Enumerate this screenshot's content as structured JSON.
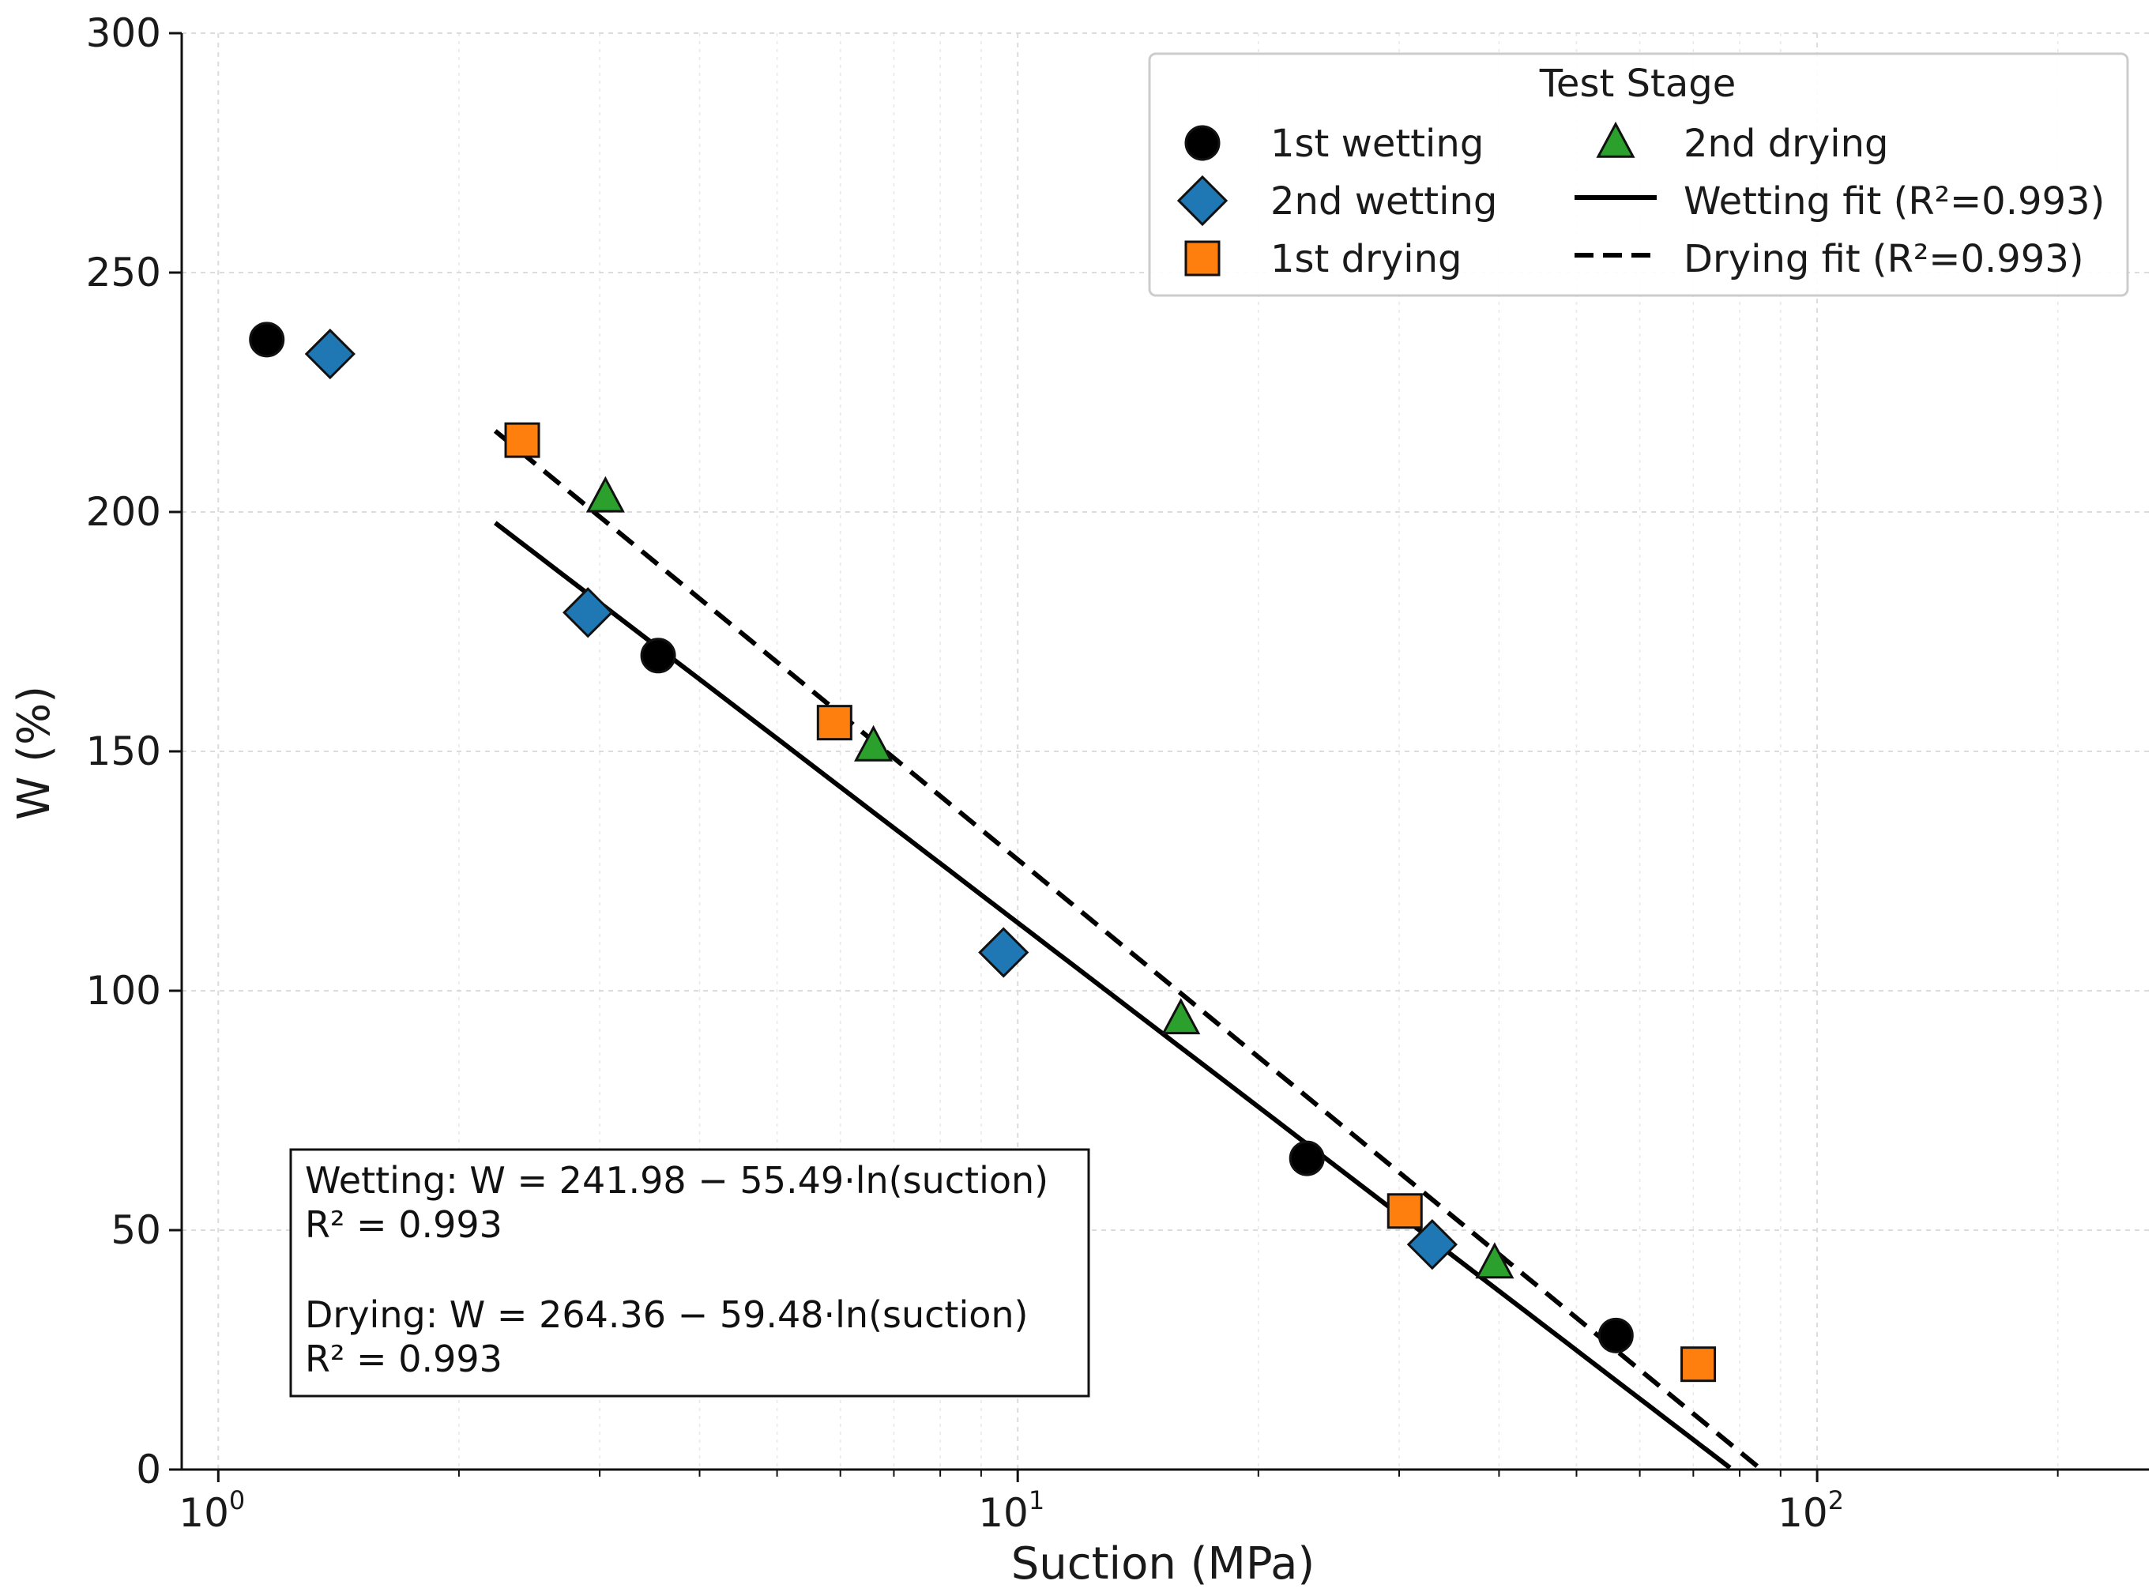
{
  "chart_data": {
    "type": "scatter",
    "title": "",
    "xlabel": "Suction (MPa)",
    "ylabel": "W (%)",
    "x_scale": "log",
    "xlim": [
      0.9,
      260
    ],
    "ylim": [
      0,
      300
    ],
    "x_ticks": [
      {
        "base": "10",
        "exp": "0",
        "value": 1
      },
      {
        "base": "10",
        "exp": "1",
        "value": 10
      },
      {
        "base": "10",
        "exp": "2",
        "value": 100
      }
    ],
    "y_ticks": [
      "0",
      "50",
      "100",
      "150",
      "200",
      "250",
      "300"
    ],
    "grid": true,
    "legend": {
      "title": "Test Stage",
      "placement": "top-right",
      "columns": 2
    },
    "series": [
      {
        "name": "1st wetting",
        "marker": "circle",
        "color": "#000000",
        "x": [
          1.15,
          3.55,
          23.0,
          56.0
        ],
        "y": [
          236,
          170,
          65,
          28
        ]
      },
      {
        "name": "2nd wetting",
        "marker": "diamond",
        "color": "#1f77b4",
        "x": [
          1.38,
          2.9,
          9.6,
          33.0
        ],
        "y": [
          233,
          179,
          108,
          47
        ]
      },
      {
        "name": "1st drying",
        "marker": "square",
        "color": "#ff7f0e",
        "x": [
          2.4,
          5.9,
          30.5,
          71.0
        ],
        "y": [
          215,
          156,
          54,
          22
        ]
      },
      {
        "name": "2nd drying",
        "marker": "triangle",
        "color": "#2ca02c",
        "x": [
          3.05,
          6.6,
          16.0,
          39.5
        ],
        "y": [
          203,
          151,
          94,
          43
        ]
      }
    ],
    "fits": [
      {
        "name": "Wetting fit (R²=0.993)",
        "style": "solid",
        "intercept": 241.98,
        "slope": -55.49,
        "x_range": [
          2.22,
          77.8
        ]
      },
      {
        "name": "Drying fit (R²=0.993)",
        "style": "dashed",
        "intercept": 264.36,
        "slope": -59.48,
        "x_range": [
          2.22,
          84.8
        ]
      }
    ],
    "annotation": [
      "Wetting: W = 241.98 − 55.49·ln(suction)",
      "R² = 0.993",
      "Drying: W = 264.36 − 59.48·ln(suction)",
      "R² = 0.993"
    ]
  }
}
